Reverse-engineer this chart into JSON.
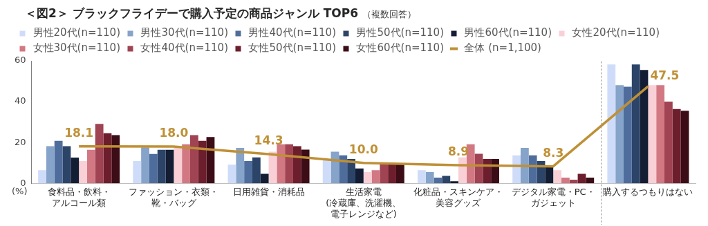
{
  "chart_data": {
    "type": "bar",
    "title": "＜図2＞ ブラックフライデーで購入予定の商品ジャンル TOP6",
    "subtitle": "（複数回答）",
    "ylabel": "(%)",
    "categories": [
      "食料品・飲料・アルコール類",
      "ファッション・衣類・靴・バッグ",
      "日用雑貨・消耗品",
      "生活家電(冷蔵庫、洗濯機、電子レンジなど)",
      "化粧品・スキンケア・美容グッズ",
      "デジタル家電・PC・ガジェット",
      "購入するつもりはない"
    ],
    "series": [
      {
        "name": "男性20代(n=110)",
        "color": "#cfdcf9",
        "values": [
          6.4,
          10.9,
          9.1,
          11.2,
          6.4,
          13.7,
          58.2
        ]
      },
      {
        "name": "男性30代(n=110)",
        "color": "#86a3c9",
        "values": [
          18.2,
          17.6,
          17.3,
          15.5,
          5.5,
          17.3,
          48.1
        ]
      },
      {
        "name": "男性40代(n=110)",
        "color": "#4f6d9c",
        "values": [
          20.8,
          14.4,
          10.9,
          13.7,
          2.8,
          13.7,
          47.3
        ]
      },
      {
        "name": "男性50代(n=110)",
        "color": "#2c4468",
        "values": [
          18.2,
          16.4,
          12.7,
          11.9,
          3.6,
          10.9,
          58.2
        ]
      },
      {
        "name": "男性60代(n=110)",
        "color": "#131d33",
        "values": [
          12.6,
          16.4,
          4.6,
          7.3,
          1.0,
          8.5,
          55.5
        ]
      },
      {
        "name": "女性20代(n=110)",
        "color": "#f9d0d6",
        "values": [
          10.9,
          17.6,
          15.5,
          5.5,
          12.7,
          6.4,
          48.1
        ]
      },
      {
        "name": "女性30代(n=110)",
        "color": "#d27883",
        "values": [
          16.4,
          19.1,
          19.1,
          6.4,
          19.1,
          2.8,
          48.1
        ]
      },
      {
        "name": "女性40代(n=110)",
        "color": "#a04352",
        "values": [
          29.1,
          23.6,
          19.1,
          9.5,
          14.5,
          1.8,
          40.0
        ]
      },
      {
        "name": "女性50代(n=110)",
        "color": "#6d1e2d",
        "values": [
          24.5,
          20.8,
          18.2,
          9.7,
          11.9,
          4.6,
          36.4
        ]
      },
      {
        "name": "女性60代(n=110)",
        "color": "#3c0d16",
        "values": [
          23.6,
          22.7,
          16.5,
          9.5,
          11.9,
          2.8,
          35.5
        ]
      },
      {
        "name": "全体 (n=1,100)",
        "color": "#bf9036",
        "type": "line",
        "values": [
          18.1,
          18.0,
          14.3,
          10.0,
          8.9,
          8.3,
          47.5
        ],
        "value_labels": [
          "18.1",
          "18.0",
          "14.3",
          "10.0",
          "8.9",
          "8.3",
          "47.5"
        ]
      }
    ],
    "ylim": [
      0,
      60
    ],
    "yticks": [
      0,
      20,
      40,
      60
    ],
    "grid": false,
    "legend": "top",
    "marker": "none"
  }
}
